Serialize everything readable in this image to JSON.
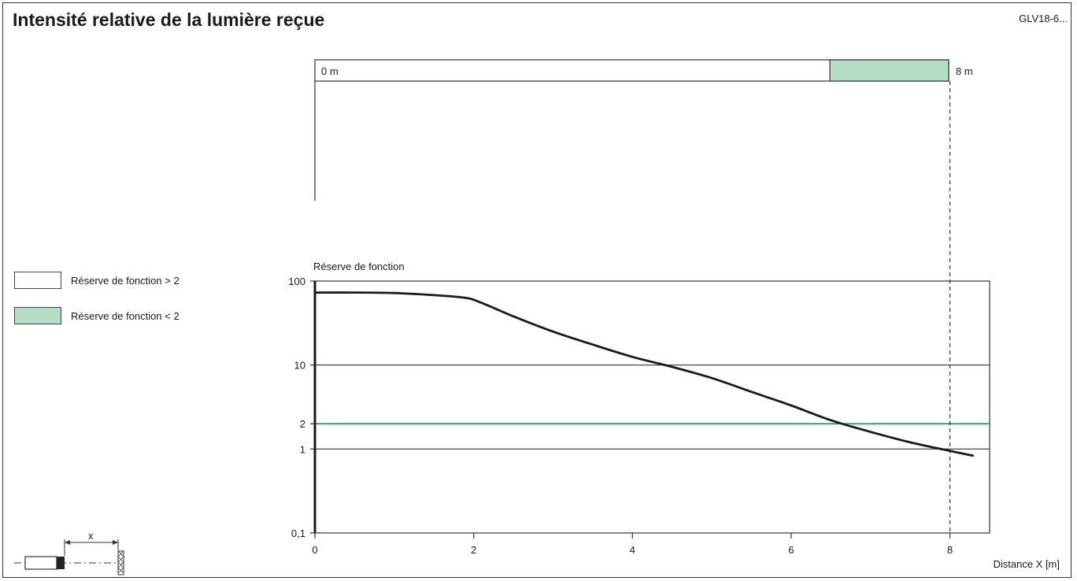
{
  "header": {
    "title": "Intensité relative de la lumière reçue",
    "reference": "GLV18-6..."
  },
  "range_bar": {
    "start_label": "0 m",
    "end_label": "8 m",
    "fill_color": "#b5dfc4",
    "start_m": 0,
    "reserve_below_2_from_m": 6.5,
    "end_m": 8
  },
  "legend": {
    "items": [
      {
        "label": "Réserve de fonction > 2",
        "color": "#ffffff"
      },
      {
        "label": "Réserve de fonction < 2",
        "color": "#b5dfc4"
      }
    ]
  },
  "sensor_diagram": {
    "dimension_label": "x"
  },
  "chart_data": {
    "type": "line",
    "title": "",
    "ylabel": "Réserve de fonction",
    "xlabel": "Distance X [m]",
    "x_ticks": [
      "0",
      "2",
      "4",
      "6",
      "8"
    ],
    "y_ticks": [
      {
        "value": 0.1,
        "label": "0,1"
      },
      {
        "value": 1,
        "label": "1"
      },
      {
        "value": 2,
        "label": "2"
      },
      {
        "value": 10,
        "label": "10"
      },
      {
        "value": 100,
        "label": "100"
      }
    ],
    "xlim": [
      0,
      8.5
    ],
    "ylim": [
      0.1,
      100
    ],
    "yscale": "log",
    "threshold": {
      "value": 2,
      "color": "#1a9a60"
    },
    "marker_x": 8,
    "series": [
      {
        "name": "",
        "color": "#1a1a1a",
        "x": [
          0,
          0.5,
          1.0,
          1.5,
          1.9,
          2.1,
          2.5,
          3.0,
          3.5,
          4.0,
          4.5,
          5.0,
          5.5,
          6.0,
          6.5,
          7.0,
          7.5,
          8.0,
          8.3
        ],
        "y": [
          73,
          73,
          72,
          68,
          63,
          55,
          38,
          25,
          17.5,
          12.5,
          9.5,
          7,
          4.8,
          3.3,
          2.2,
          1.6,
          1.2,
          0.95,
          0.83
        ]
      }
    ]
  }
}
